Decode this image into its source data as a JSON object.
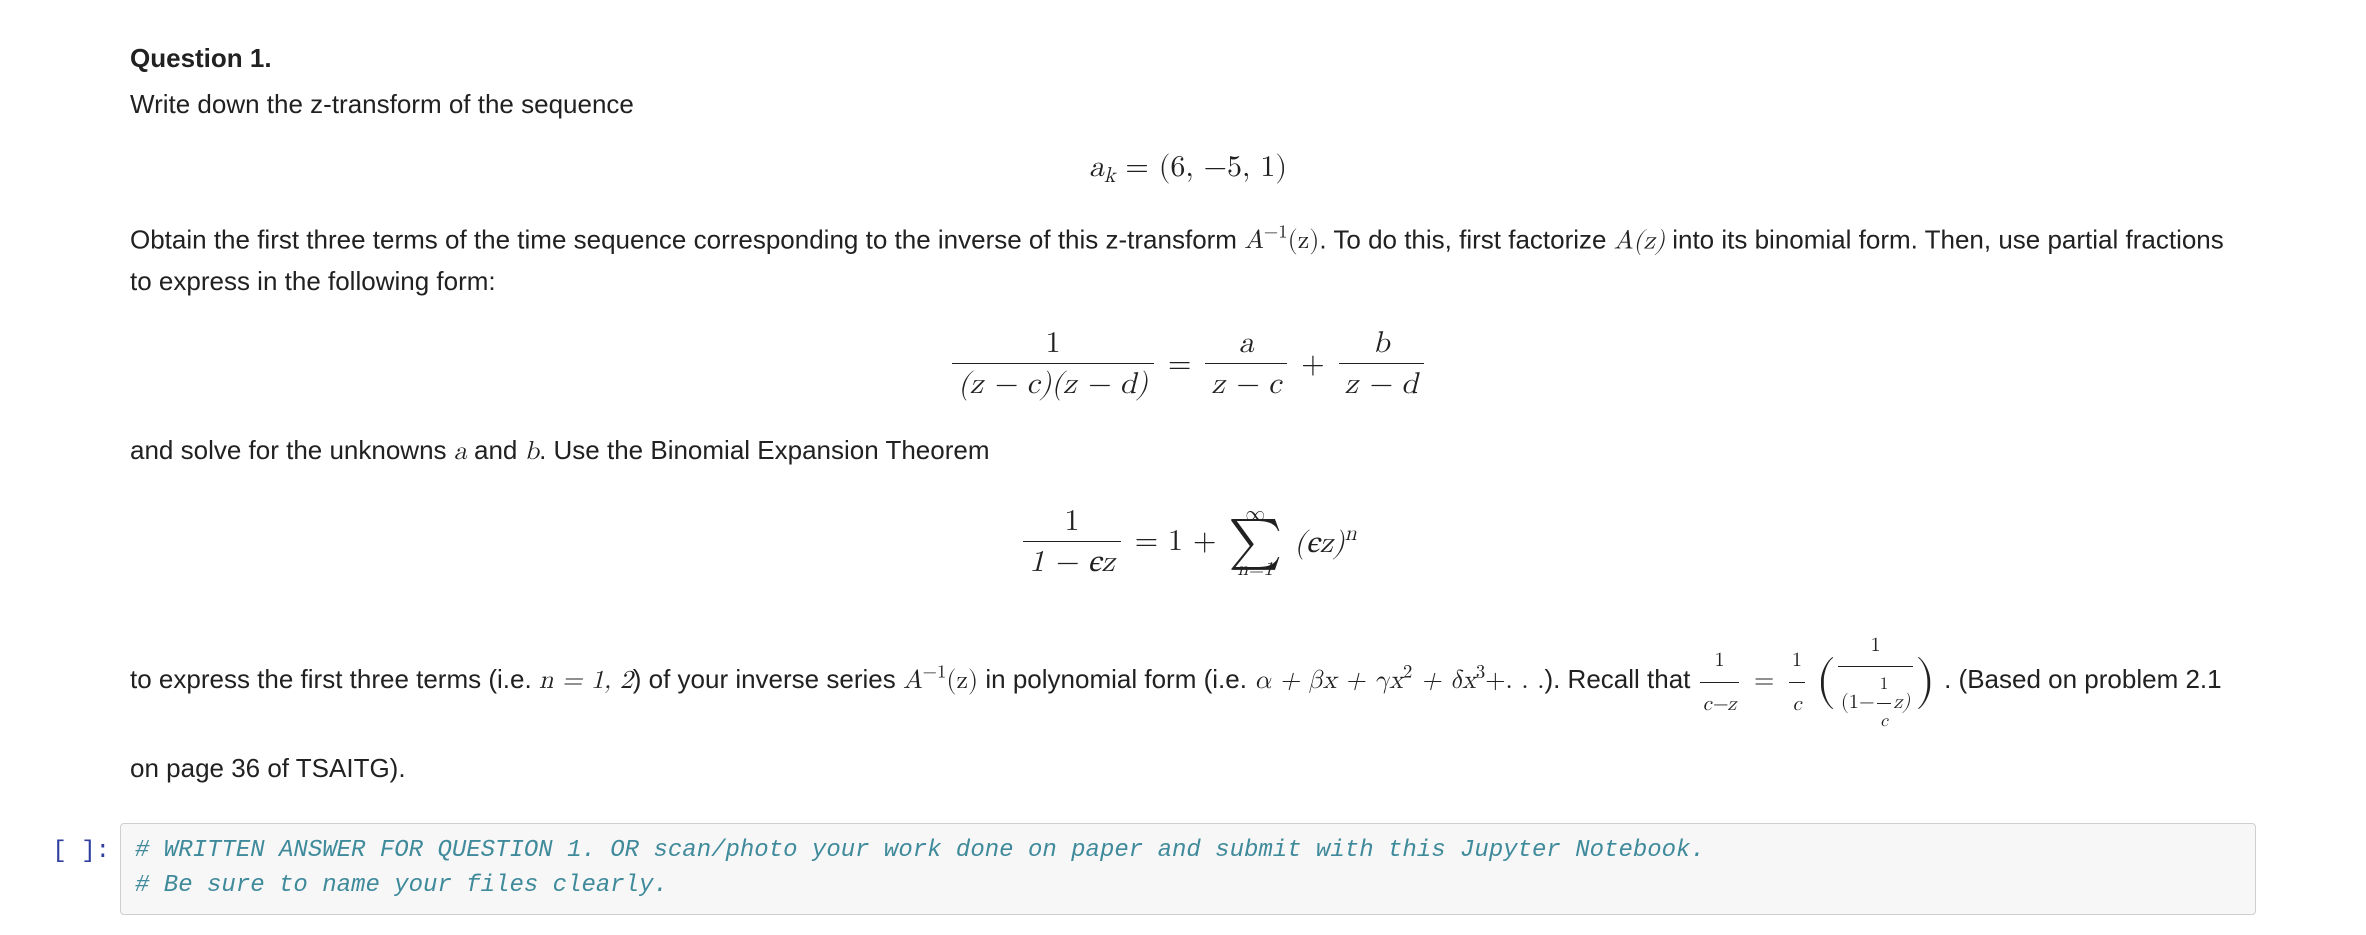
{
  "question": {
    "heading": "Question 1.",
    "intro": "Write down the z-transform of the sequence",
    "seq_eq": {
      "lhs_var": "a",
      "lhs_sub": "k",
      "rhs": "(6, −5, 1)"
    },
    "para2_a": "Obtain the first three terms of the time sequence corresponding to the inverse of this z-transform ",
    "Ainv": "A",
    "Ainv_sup": "−1",
    "Ainv_arg": "(z)",
    "para2_b": ". To do this, first factorize ",
    "Az": "A(z)",
    "para2_c": " into its binomial form. Then, use partial fractions to express in the following form:",
    "pf_eq": {
      "L_num": "1",
      "L_den": "(z − c)(z − d)",
      "eq": "=",
      "R1_num": "a",
      "R1_den": "z − c",
      "plus": "+",
      "R2_num": "b",
      "R2_den": "z − d"
    },
    "para3_a": "and solve for the unknowns ",
    "a_var": "a",
    "para3_b": " and ",
    "b_var": "b",
    "para3_c": ". Use the Binomial Expansion Theorem",
    "binom_eq": {
      "L_num": "1",
      "L_den": "1 − єz",
      "eq": "= 1 +",
      "sum_top": "∞",
      "sum_bot": "n=1",
      "term": "(єz)",
      "term_sup": "n"
    },
    "para4_a": "to express the first three terms (i.e. ",
    "n_eq": "n = 1, 2",
    "para4_b": ") of your inverse series ",
    "para4_c": " in polynomial form (i.e. ",
    "poly": "α + βx + γx",
    "poly_sup2": "2",
    "poly_mid": " + δx",
    "poly_sup3": "3",
    "poly_tail": "+. . .",
    "para4_d": "). Recall that ",
    "recall_L_num": "1",
    "recall_L_den": "c−z",
    "recall_eq": "=",
    "recall_R1_num": "1",
    "recall_R1_den": "c",
    "recall_inner_num": "1",
    "recall_inner_den_a": "(1−",
    "recall_inner_den_frac_num": "1",
    "recall_inner_den_frac_den": "c",
    "recall_inner_den_b": "z)",
    "para4_e": ". (Based on problem 2.1 on page 36 of TSAITG)."
  },
  "cell": {
    "prompt": "[ ]:",
    "line1": "# WRITTEN ANSWER FOR QUESTION 1. OR scan/photo your work done on paper and submit with this Jupyter Notebook.",
    "line2": "# Be sure to name your files clearly."
  },
  "colors": {
    "text": "#212121",
    "code_bg": "#f7f7f7",
    "code_border": "#cfcfcf",
    "comment": "#3f8a9b",
    "prompt": "#303F9F"
  }
}
